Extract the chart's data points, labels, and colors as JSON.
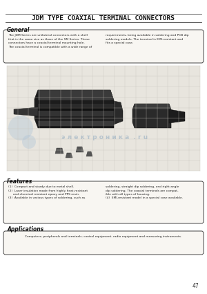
{
  "title": "JDM TYPE COAXIAL TERMINAL CONNECTORS",
  "bg_color": "#ffffff",
  "general_heading": "General",
  "general_text_left": "The JDM Series are unilateral connectors with a shell\nthat is the same size as those of the SM Series. These\nconnectors have a coaxial terminal mounting hole.\nThe coaxial terminal is compatible with a wide range of",
  "general_text_right": "requirements, being available in soldering and PCB dip\nsoldering models. The terminal is EMI-resistant and\nfits a special case.",
  "features_heading": "Features",
  "features_text_left": "(1)  Compact and sturdy due to metal shell.\n(2)  Laser insulation made from highly heat-resistant\n     and chemical resistant epoxy and PPS resin.\n(3)  Available in various types of soldering, such as",
  "features_text_right": "soldering, straight dip soldering, and right angle\ndip soldering. The coaxial terminals are compat-\nible with all types of housing.\n(4)  EMI-resistant model in a special case available.",
  "applications_heading": "Applications",
  "applications_text": "Computers, peripherals and terminals, control equipment, radio equipment and measuring instruments.",
  "page_number": "47",
  "watermark_text": "э л е к т р о н и к а  . r u"
}
